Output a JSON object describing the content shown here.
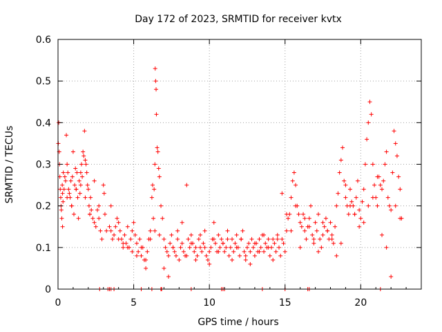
{
  "chart_data": {
    "type": "scatter",
    "title": "Day 172 of 2023, SRMTID for receiver kvtx",
    "xlabel": "GPS time / hours",
    "ylabel": "SRMTID / TECUs",
    "xlim": [
      0,
      24
    ],
    "ylim": [
      0,
      0.6
    ],
    "xticks": [
      0,
      5,
      10,
      15,
      20
    ],
    "xtick_labels": [
      "0",
      "5",
      "10",
      "15",
      "20"
    ],
    "yticks": [
      0,
      0.1,
      0.2,
      0.3,
      0.4,
      0.5,
      0.6
    ],
    "ytick_labels": [
      "0",
      "0.1",
      "0.2",
      "0.3",
      "0.4",
      "0.5",
      "0.6"
    ],
    "grid": true,
    "marker": "plus",
    "color": "#ff0000",
    "series": [
      {
        "name": "SRMTID",
        "x": [
          0.02,
          0.05,
          0.08,
          0.1,
          0.12,
          0.15,
          0.18,
          0.2,
          0.22,
          0.25,
          0.28,
          0.3,
          0.33,
          0.35,
          0.4,
          0.45,
          0.5,
          0.55,
          0.6,
          0.65,
          0.7,
          0.75,
          0.8,
          0.85,
          0.9,
          0.95,
          1.0,
          1.05,
          1.1,
          1.15,
          1.2,
          1.25,
          1.3,
          1.35,
          1.4,
          1.45,
          1.5,
          1.55,
          1.6,
          1.65,
          1.7,
          1.75,
          1.8,
          1.85,
          1.9,
          1.95,
          2.0,
          2.05,
          2.1,
          2.15,
          2.2,
          2.3,
          2.4,
          2.5,
          2.6,
          2.7,
          2.8,
          2.9,
          3.0,
          3.05,
          3.1,
          3.4,
          3.5,
          3.6,
          3.8,
          3.9,
          4.0,
          4.1,
          4.2,
          4.3,
          4.4,
          4.5,
          4.6,
          4.7,
          4.8,
          4.9,
          5.0,
          5.1,
          5.2,
          5.3,
          5.4,
          5.5,
          5.6,
          5.7,
          5.8,
          5.9,
          6.0,
          6.1,
          6.2,
          6.25,
          6.3,
          6.35,
          6.4,
          6.42,
          6.45,
          6.48,
          6.5,
          6.55,
          6.6,
          6.65,
          6.7,
          6.8,
          6.9,
          7.0,
          7.1,
          7.2,
          7.3,
          7.4,
          7.5,
          7.6,
          7.7,
          7.8,
          7.9,
          8.0,
          8.1,
          8.2,
          8.3,
          8.4,
          8.5,
          8.6,
          8.7,
          8.8,
          8.9,
          9.0,
          9.1,
          9.2,
          9.3,
          9.4,
          9.5,
          9.6,
          9.7,
          9.8,
          9.9,
          10.0,
          10.1,
          10.2,
          10.3,
          10.4,
          10.5,
          10.6,
          10.7,
          10.8,
          10.9,
          11.0,
          11.1,
          11.2,
          11.3,
          11.4,
          11.5,
          11.6,
          11.7,
          11.8,
          11.9,
          12.0,
          12.1,
          12.2,
          12.3,
          12.4,
          12.5,
          12.6,
          12.7,
          12.8,
          12.9,
          13.0,
          13.1,
          13.2,
          13.3,
          13.4,
          13.5,
          13.6,
          13.7,
          13.8,
          13.9,
          14.0,
          14.1,
          14.2,
          14.3,
          14.4,
          14.5,
          14.6,
          14.7,
          14.8,
          14.9,
          15.0,
          15.1,
          15.2,
          15.3,
          15.4,
          15.5,
          15.6,
          15.7,
          15.8,
          15.9,
          16.0,
          16.1,
          16.2,
          16.3,
          16.4,
          16.5,
          16.6,
          16.7,
          16.8,
          16.9,
          17.0,
          17.1,
          17.2,
          17.3,
          17.4,
          17.5,
          17.6,
          17.7,
          17.8,
          17.9,
          18.0,
          18.1,
          18.2,
          18.3,
          18.4,
          18.5,
          18.6,
          18.7,
          18.8,
          18.9,
          19.0,
          19.1,
          19.2,
          19.3,
          19.4,
          19.5,
          19.6,
          19.7,
          19.8,
          19.9,
          20.0,
          20.1,
          20.2,
          20.3,
          20.4,
          20.5,
          20.6,
          20.7,
          20.8,
          20.9,
          21.0,
          21.1,
          21.2,
          21.3,
          21.4,
          21.5,
          21.6,
          21.7,
          21.8,
          21.9,
          22.0,
          22.1,
          22.2,
          22.3,
          22.4,
          22.5,
          22.6,
          22.7,
          0.3,
          0.6,
          0.9,
          1.2,
          1.5,
          1.8,
          2.1,
          2.4,
          2.7,
          3.2,
          3.5,
          3.7,
          4.0,
          4.3,
          4.6,
          4.9,
          5.2,
          5.5,
          5.8,
          6.1,
          6.4,
          6.7,
          7.0,
          7.3,
          7.6,
          7.9,
          8.2,
          8.5,
          8.8,
          9.1,
          9.4,
          9.7,
          10.0,
          10.3,
          10.6,
          10.9,
          11.2,
          11.5,
          11.8,
          12.1,
          12.4,
          12.7,
          13.0,
          13.3,
          13.6,
          13.9,
          14.2,
          14.5,
          14.8,
          15.1,
          15.4,
          15.7,
          16.0,
          16.3,
          16.6,
          16.9,
          17.2,
          17.5,
          17.8,
          18.1,
          18.4,
          18.7,
          19.0,
          19.3,
          19.6,
          19.9,
          20.2,
          20.5,
          20.8,
          21.1,
          21.4,
          21.7,
          22.0,
          22.3,
          22.6,
          2.75,
          3.3,
          3.4,
          3.5,
          3.7,
          5.5,
          6.2,
          6.8,
          6.85,
          8.8,
          10.8,
          10.9,
          11.0,
          13.5,
          15.0,
          16.5,
          16.6,
          21.3
        ],
        "y": [
          0.35,
          0.4,
          0.33,
          0.3,
          0.27,
          0.24,
          0.22,
          0.2,
          0.19,
          0.17,
          0.25,
          0.23,
          0.21,
          0.28,
          0.24,
          0.27,
          0.26,
          0.37,
          0.3,
          0.28,
          0.24,
          0.23,
          0.22,
          0.26,
          0.2,
          0.27,
          0.33,
          0.18,
          0.25,
          0.29,
          0.24,
          0.28,
          0.22,
          0.17,
          0.26,
          0.23,
          0.25,
          0.3,
          0.27,
          0.33,
          0.32,
          0.38,
          0.31,
          0.3,
          0.28,
          0.25,
          0.24,
          0.2,
          0.18,
          0.22,
          0.19,
          0.17,
          0.16,
          0.15,
          0.19,
          0.2,
          0.14,
          0.12,
          0.25,
          0.23,
          0.18,
          0.15,
          0.14,
          0.12,
          0.15,
          0.17,
          0.16,
          0.14,
          0.12,
          0.1,
          0.13,
          0.11,
          0.15,
          0.1,
          0.12,
          0.14,
          0.16,
          0.13,
          0.11,
          0.09,
          0.12,
          0.08,
          0.1,
          0.07,
          0.05,
          0.09,
          0.12,
          0.14,
          0.22,
          0.25,
          0.17,
          0.24,
          0.3,
          0.53,
          0.5,
          0.48,
          0.42,
          0.34,
          0.33,
          0.29,
          0.27,
          0.2,
          0.17,
          0.12,
          0.1,
          0.09,
          0.08,
          0.11,
          0.13,
          0.1,
          0.09,
          0.08,
          0.12,
          0.07,
          0.1,
          0.11,
          0.09,
          0.08,
          0.25,
          0.12,
          0.1,
          0.13,
          0.11,
          0.09,
          0.1,
          0.08,
          0.12,
          0.1,
          0.09,
          0.11,
          0.14,
          0.08,
          0.07,
          0.09,
          0.1,
          0.12,
          0.16,
          0.11,
          0.09,
          0.13,
          0.1,
          0.12,
          0.11,
          0.09,
          0.1,
          0.12,
          0.08,
          0.1,
          0.12,
          0.09,
          0.11,
          0.13,
          0.1,
          0.08,
          0.12,
          0.14,
          0.09,
          0.07,
          0.1,
          0.11,
          0.09,
          0.12,
          0.1,
          0.08,
          0.11,
          0.09,
          0.12,
          0.1,
          0.13,
          0.09,
          0.11,
          0.1,
          0.12,
          0.08,
          0.1,
          0.12,
          0.11,
          0.09,
          0.13,
          0.1,
          0.08,
          0.12,
          0.11,
          0.09,
          0.14,
          0.17,
          0.18,
          0.22,
          0.26,
          0.28,
          0.25,
          0.2,
          0.18,
          0.16,
          0.15,
          0.18,
          0.14,
          0.12,
          0.15,
          0.17,
          0.2,
          0.13,
          0.11,
          0.16,
          0.14,
          0.18,
          0.12,
          0.1,
          0.13,
          0.15,
          0.17,
          0.14,
          0.12,
          0.16,
          0.13,
          0.11,
          0.15,
          0.2,
          0.23,
          0.28,
          0.31,
          0.34,
          0.26,
          0.22,
          0.2,
          0.18,
          0.24,
          0.21,
          0.2,
          0.18,
          0.22,
          0.26,
          0.19,
          0.17,
          0.21,
          0.24,
          0.3,
          0.36,
          0.4,
          0.45,
          0.42,
          0.3,
          0.25,
          0.22,
          0.2,
          0.27,
          0.25,
          0.24,
          0.26,
          0.3,
          0.33,
          0.22,
          0.2,
          0.19,
          0.28,
          0.38,
          0.35,
          0.32,
          0.27,
          0.24,
          0.17,
          0.15,
          0.22,
          0.2,
          0.24,
          0.28,
          0.22,
          0.18,
          0.26,
          0.17,
          0.14,
          0.2,
          0.13,
          0.12,
          0.11,
          0.1,
          0.09,
          0.08,
          0.1,
          0.07,
          0.12,
          0.14,
          0.13,
          0.05,
          0.03,
          0.1,
          0.14,
          0.16,
          0.08,
          0.11,
          0.07,
          0.13,
          0.1,
          0.06,
          0.12,
          0.09,
          0.11,
          0.14,
          0.07,
          0.1,
          0.12,
          0.08,
          0.06,
          0.11,
          0.09,
          0.13,
          0.1,
          0.07,
          0.12,
          0.23,
          0.18,
          0.14,
          0.2,
          0.1,
          0.17,
          0.15,
          0.12,
          0.09,
          0.16,
          0.14,
          0.12,
          0.08,
          0.11,
          0.25,
          0.2,
          0.18,
          0.15,
          0.16,
          0.2,
          0.22,
          0.27,
          0.13,
          0.1,
          0.03,
          0.2,
          0.17,
          0,
          0,
          0,
          0,
          0,
          0,
          0,
          0,
          0,
          0,
          0,
          0,
          0,
          0,
          0,
          0,
          0,
          0
        ],
        "color": "#ff0000"
      }
    ]
  }
}
